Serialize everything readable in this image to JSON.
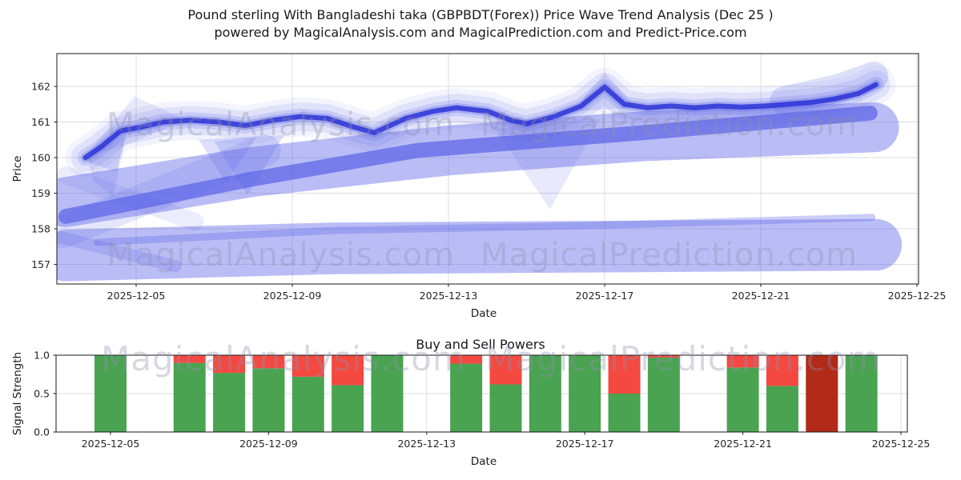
{
  "title": {
    "line1": "Pound sterling With Bangladeshi taka (GBPBDT(Forex)) Price Wave Trend Analysis (Dec 25 )",
    "line2": "powered by MagicalAnalysis.com and MagicalPrediction.com and Predict-Price.com"
  },
  "watermarks": {
    "analysis": "MagicalAnalysis.com",
    "prediction": "MagicalPrediction.com"
  },
  "colors": {
    "band_blue": "#5a62e6",
    "line_dark_blue": "#2c33d6",
    "buy_green": "#4aa351",
    "sell_red": "#f44940",
    "strong_sell_dark_red": "#b22a18",
    "grid": "#dcdcdf",
    "spine": "#1a1a1a",
    "tick_text": "#262626"
  },
  "top_chart": {
    "ylabel": "Price",
    "xlabel": "Date",
    "y_ticks": [
      "157",
      "158",
      "159",
      "160",
      "161",
      "162"
    ],
    "x_ticks": [
      "2025-12-05",
      "2025-12-09",
      "2025-12-13",
      "2025-12-17",
      "2025-12-21",
      "2025-12-25"
    ]
  },
  "bottom_chart": {
    "title": "Buy and Sell Powers",
    "ylabel": "Signal Strength",
    "xlabel": "Date",
    "y_ticks": [
      "0.0",
      "0.5",
      "1.0"
    ],
    "x_ticks": [
      "2025-12-05",
      "2025-12-09",
      "2025-12-13",
      "2025-12-17",
      "2025-12-21",
      "2025-12-25"
    ]
  },
  "chart_data": [
    {
      "type": "line",
      "title": "Price Wave Trend (GBPBDT)",
      "xlabel": "Date",
      "ylabel": "Price",
      "x_tick_labels": [
        "2025-12-05",
        "2025-12-09",
        "2025-12-13",
        "2025-12-17",
        "2025-12-21",
        "2025-12-25"
      ],
      "y_tick_values": [
        157,
        158,
        159,
        160,
        161,
        162
      ],
      "ylim": [
        156.4,
        162.9
      ],
      "grid": true,
      "legend": "none",
      "price_wave_line": {
        "points": [
          [
            3.7,
            160.0
          ],
          [
            4.1,
            160.3
          ],
          [
            4.6,
            160.75
          ],
          [
            5.1,
            160.85
          ],
          [
            5.7,
            161.0
          ],
          [
            6.4,
            161.05
          ],
          [
            7.1,
            161.0
          ],
          [
            7.8,
            160.9
          ],
          [
            8.5,
            161.05
          ],
          [
            9.2,
            161.15
          ],
          [
            9.9,
            161.1
          ],
          [
            10.6,
            160.85
          ],
          [
            11.1,
            160.7
          ],
          [
            11.9,
            161.1
          ],
          [
            12.6,
            161.3
          ],
          [
            13.2,
            161.4
          ],
          [
            14.0,
            161.3
          ],
          [
            14.6,
            161.05
          ],
          [
            15.0,
            160.95
          ],
          [
            15.7,
            161.15
          ],
          [
            16.4,
            161.45
          ],
          [
            17.0,
            161.98
          ],
          [
            17.5,
            161.5
          ],
          [
            18.1,
            161.4
          ],
          [
            18.7,
            161.45
          ],
          [
            19.3,
            161.4
          ],
          [
            19.9,
            161.45
          ],
          [
            20.5,
            161.42
          ],
          [
            21.1,
            161.45
          ],
          [
            21.7,
            161.5
          ],
          [
            22.3,
            161.55
          ],
          [
            22.9,
            161.65
          ],
          [
            23.5,
            161.8
          ],
          [
            23.95,
            162.05
          ]
        ]
      },
      "halo_layers": [
        {
          "width_price": 1.1,
          "opacity": 0.07
        },
        {
          "width_price": 0.8,
          "opacity": 0.12
        },
        {
          "width_price": 0.45,
          "opacity": 0.18
        },
        {
          "width_price": 0.26,
          "opacity": 0.3
        }
      ],
      "core_line": {
        "width_price": 0.14,
        "opacity": 0.85
      },
      "end_surge_halo": {
        "points": [
          [
            21.6,
            161.6
          ],
          [
            23.0,
            161.95
          ],
          [
            23.9,
            162.3
          ]
        ],
        "width_price": 0.8,
        "opacity": 0.2
      },
      "forecast_bands": [
        {
          "name": "lower-band",
          "points": [
            [
              3.2,
              157.25
            ],
            [
              10,
              157.45
            ],
            [
              17,
              157.5
            ],
            [
              23.95,
              157.55
            ]
          ],
          "width_price": 1.45,
          "opacity": 0.42
        },
        {
          "name": "lower-band-left-cross",
          "points": [
            [
              3.1,
              157.75
            ],
            [
              6.0,
              156.95
            ]
          ],
          "width_price": 0.35,
          "opacity": 0.22
        },
        {
          "name": "lower-band-rim",
          "points": [
            [
              4.0,
              157.62
            ],
            [
              10,
              157.95
            ],
            [
              17,
              158.1
            ],
            [
              23.85,
              158.32
            ]
          ],
          "width_price": 0.2,
          "opacity": 0.32
        },
        {
          "name": "mid-band-left-cross-down",
          "points": [
            [
              3.2,
              159.5
            ],
            [
              6.5,
              158.2
            ]
          ],
          "width_price": 0.5,
          "opacity": 0.12
        },
        {
          "name": "mid-band-left-cross-up",
          "points": [
            [
              3.1,
              157.9
            ],
            [
              8.3,
              160.2
            ]
          ],
          "width_price": 0.9,
          "opacity": 0.16
        },
        {
          "name": "mid-band",
          "points": [
            [
              3.2,
              158.75
            ],
            [
              8,
              159.6
            ],
            [
              13,
              160.2
            ],
            [
              18,
              160.6
            ],
            [
              23.9,
              160.85
            ]
          ],
          "width_price": 1.4,
          "opacity": 0.42
        },
        {
          "name": "mid-stripe",
          "points": [
            [
              3.2,
              158.35
            ],
            [
              8,
              159.4
            ],
            [
              12.2,
              160.2
            ],
            [
              18,
              160.7
            ],
            [
              23.8,
              161.25
            ]
          ],
          "width_price": 0.42,
          "opacity": 0.7
        }
      ],
      "decoration_polygons": [
        {
          "name": "start-fan-up",
          "points": [
            [
              3.75,
              160.1
            ],
            [
              4.95,
              161.72
            ],
            [
              6.3,
              161.05
            ],
            [
              4.6,
              160.3
            ]
          ],
          "opacity": 0.14
        },
        {
          "name": "start-fan-down",
          "points": [
            [
              3.75,
              160.05
            ],
            [
              4.75,
              160.6
            ],
            [
              4.4,
              158.9
            ],
            [
              3.9,
              159.35
            ]
          ],
          "opacity": 0.16
        },
        {
          "name": "start-knot",
          "points": [
            [
              3.7,
              159.9
            ],
            [
              4.8,
              160.95
            ],
            [
              4.5,
              159.6
            ]
          ],
          "opacity": 0.2
        },
        {
          "name": "v-dip-1",
          "points": [
            [
              6.6,
              160.5
            ],
            [
              7.3,
              159.3
            ],
            [
              8.1,
              160.6
            ]
          ],
          "opacity": 0.2
        },
        {
          "name": "v-dip-2",
          "points": [
            [
              7.0,
              160.45
            ],
            [
              7.85,
              158.95
            ],
            [
              8.8,
              160.65
            ]
          ],
          "opacity": 0.2
        },
        {
          "name": "v-dip-3",
          "points": [
            [
              14.2,
              160.8
            ],
            [
              15.6,
              158.55
            ],
            [
              16.9,
              161.1
            ]
          ],
          "opacity": 0.14
        },
        {
          "name": "peak-halo",
          "points": [
            [
              16.2,
              161.3
            ],
            [
              17.0,
              162.4
            ],
            [
              17.8,
              161.4
            ]
          ],
          "opacity": 0.16
        }
      ]
    },
    {
      "type": "bar",
      "title": "Buy and Sell Powers",
      "xlabel": "Date",
      "ylabel": "Signal Strength",
      "x_tick_labels": [
        "2025-12-05",
        "2025-12-09",
        "2025-12-13",
        "2025-12-17",
        "2025-12-21",
        "2025-12-25"
      ],
      "y_tick_values": [
        0.0,
        0.5,
        1.0
      ],
      "ylim": [
        0,
        1
      ],
      "grid": true,
      "stacked": true,
      "bars": [
        {
          "date": "2025-12-05",
          "buy": 1.0,
          "sell": 0.0
        },
        {
          "date": "2025-12-07",
          "buy": 0.9,
          "sell": 0.1
        },
        {
          "date": "2025-12-08",
          "buy": 0.77,
          "sell": 0.23
        },
        {
          "date": "2025-12-09",
          "buy": 0.83,
          "sell": 0.17
        },
        {
          "date": "2025-12-10",
          "buy": 0.72,
          "sell": 0.28
        },
        {
          "date": "2025-12-11",
          "buy": 0.61,
          "sell": 0.39
        },
        {
          "date": "2025-12-12",
          "buy": 1.0,
          "sell": 0.0
        },
        {
          "date": "2025-12-14",
          "buy": 0.89,
          "sell": 0.11
        },
        {
          "date": "2025-12-15",
          "buy": 0.62,
          "sell": 0.38
        },
        {
          "date": "2025-12-16",
          "buy": 1.0,
          "sell": 0.0
        },
        {
          "date": "2025-12-17",
          "buy": 1.0,
          "sell": 0.0
        },
        {
          "date": "2025-12-18",
          "buy": 0.5,
          "sell": 0.5
        },
        {
          "date": "2025-12-19",
          "buy": 0.97,
          "sell": 0.03
        },
        {
          "date": "2025-12-21",
          "buy": 0.84,
          "sell": 0.16
        },
        {
          "date": "2025-12-22",
          "buy": 0.6,
          "sell": 0.4
        },
        {
          "date": "2025-12-23",
          "buy": 0.0,
          "sell": 1.0,
          "strong_sell": true
        },
        {
          "date": "2025-12-24",
          "buy": 1.0,
          "sell": 0.0
        }
      ]
    }
  ]
}
